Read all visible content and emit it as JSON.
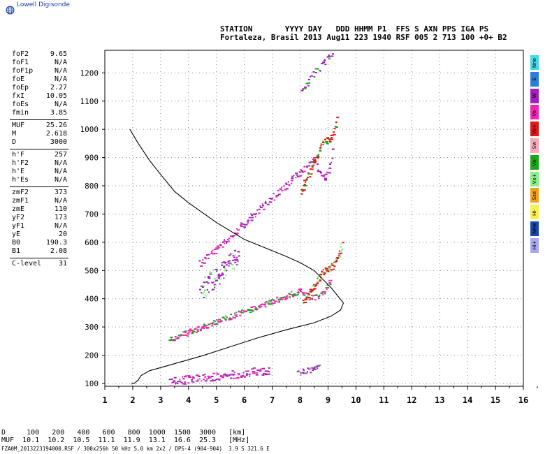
{
  "app": {
    "logo_text": "Lowell Digisonde",
    "globe_icon": "globe-icon"
  },
  "header": {
    "line1": "STATION       YYYY DAY   DDD HHMM P1  FFS S AXN PPS IGA PS",
    "line2": "Fortaleza, Brasil 2013 Aug11 223 1940 RSF 005 2 713 100 +0+ B2"
  },
  "params": {
    "group1": [
      {
        "label": "foF2",
        "value": "9.65"
      },
      {
        "label": "foF1",
        "value": "N/A"
      },
      {
        "label": "foF1p",
        "value": "N/A"
      },
      {
        "label": "foE",
        "value": "N/A"
      },
      {
        "label": "foEp",
        "value": "2.27"
      },
      {
        "label": "fxI",
        "value": "10.05"
      },
      {
        "label": "foEs",
        "value": "N/A"
      },
      {
        "label": "fmin",
        "value": "3.85"
      }
    ],
    "group2": [
      {
        "label": "MUF",
        "value": "25.26"
      },
      {
        "label": "M",
        "value": "2.618"
      },
      {
        "label": "D",
        "value": "3000"
      }
    ],
    "group3": [
      {
        "label": "h'F",
        "value": "257"
      },
      {
        "label": "h'F2",
        "value": "N/A"
      },
      {
        "label": "h'E",
        "value": "N/A"
      },
      {
        "label": "h'Es",
        "value": "N/A"
      }
    ],
    "group4": [
      {
        "label": "zmF2",
        "value": "373"
      },
      {
        "label": "zmF1",
        "value": "N/A"
      },
      {
        "label": "zmE",
        "value": "110"
      },
      {
        "label": "yF2",
        "value": "173"
      },
      {
        "label": "yF1",
        "value": "N/A"
      },
      {
        "label": "yE",
        "value": "20"
      },
      {
        "label": "B0",
        "value": "190.3"
      },
      {
        "label": "B1",
        "value": "2.08"
      }
    ],
    "group5": [
      {
        "label": "C-level",
        "value": "31"
      }
    ]
  },
  "legend": [
    {
      "label": "Nne",
      "color": "#44d8e8"
    },
    {
      "label": "E",
      "color": "#2a7fd8"
    },
    {
      "label": "W",
      "color": "#a020b8"
    },
    {
      "label": "Vo-",
      "color": "#f028b0"
    },
    {
      "label": "Vo+",
      "color": "#e01818"
    },
    {
      "label": "Sw",
      "color": "#f4a8b8"
    },
    {
      "label": "Vx-",
      "color": "#18a818"
    },
    {
      "label": "Vx+",
      "color": "#88f088"
    },
    {
      "label": "Sse",
      "color": "#f0a020"
    },
    {
      "label": "Hi-",
      "color": "#f8f050"
    },
    {
      "label": "Nnw",
      "color": "#1848a8"
    },
    {
      "label": "Hi+",
      "color": "#a8a8f0"
    }
  ],
  "muf_table": {
    "line1": "D     100   200   400   600   800  1000  1500  3000   [km]",
    "line2": "MUF  10.1  10.2  10.5  11.1  11.9  13.1  16.6  25.3   [MHz]"
  },
  "footer": "FZA0M_2013223194000.RSF / 300x256h 50 kHz 5.0 km 2x2 / DPS-4 (904-904)  3.9 S 321.6 E",
  "chart_data": {
    "type": "scatter",
    "title": "",
    "xlabel": "",
    "ylabel": "",
    "xlim": [
      1,
      16
    ],
    "ylim": [
      90,
      1280
    ],
    "x_ticks": [
      1,
      2,
      3,
      4,
      5,
      6,
      7,
      8,
      9,
      10,
      11,
      12,
      13,
      14,
      15,
      16
    ],
    "y_ticks": [
      100,
      200,
      300,
      400,
      500,
      600,
      700,
      800,
      900,
      1000,
      1100,
      1200
    ],
    "grid": true,
    "profile": {
      "name": "",
      "color": "#000000",
      "points": [
        [
          1.9,
          1000
        ],
        [
          2.2,
          950
        ],
        [
          2.6,
          890
        ],
        [
          3.0,
          840
        ],
        [
          3.5,
          780
        ],
        [
          4.0,
          740
        ],
        [
          4.5,
          705
        ],
        [
          5.0,
          670
        ],
        [
          5.5,
          640
        ],
        [
          6.0,
          610
        ],
        [
          6.5,
          590
        ],
        [
          7.0,
          570
        ],
        [
          7.5,
          550
        ],
        [
          8.0,
          528
        ],
        [
          8.5,
          500
        ],
        [
          8.8,
          470
        ],
        [
          9.1,
          440
        ],
        [
          9.35,
          410
        ],
        [
          9.55,
          385
        ],
        [
          9.45,
          360
        ],
        [
          9.1,
          338
        ],
        [
          8.5,
          315
        ],
        [
          7.5,
          290
        ],
        [
          6.5,
          262
        ],
        [
          5.5,
          230
        ],
        [
          4.5,
          198
        ],
        [
          3.5,
          170
        ],
        [
          2.6,
          145
        ],
        [
          2.3,
          128
        ],
        [
          2.2,
          112
        ],
        [
          2.05,
          100
        ],
        [
          1.95,
          98
        ]
      ]
    },
    "traces": [
      {
        "name": "",
        "color": "#f028b0",
        "alt": "#18a818",
        "x0": 3.3,
        "x1": 9.1,
        "h0": 258,
        "h1": 470,
        "bend": 8.0,
        "spread": 8,
        "n": 220
      },
      {
        "name": "",
        "color": "#e01818",
        "alt": "#88f088",
        "x0": 8.1,
        "x1": 9.5,
        "h0": 390,
        "h1": 600,
        "bend": 8.9,
        "spread": 8,
        "n": 90
      },
      {
        "name": "",
        "color": "#a020b8",
        "alt": "#f028b0",
        "x0": 4.4,
        "x1": 9.2,
        "h0": 525,
        "h1": 960,
        "bend": 8.5,
        "spread": 10,
        "n": 150
      },
      {
        "name": "",
        "color": "#e01818",
        "alt": "#18a818",
        "x0": 8.0,
        "x1": 9.3,
        "h0": 780,
        "h1": 1060,
        "bend": 8.9,
        "spread": 8,
        "n": 70
      },
      {
        "name": "",
        "color": "#a020b8",
        "alt": "#f028b0",
        "x0": 3.3,
        "x1": 6.9,
        "h0": 108,
        "h1": 150,
        "bend": 7.0,
        "spread": 12,
        "n": 120
      },
      {
        "name": "",
        "color": "#a020b8",
        "alt": "#88f088",
        "x0": 4.4,
        "x1": 5.8,
        "h0": 430,
        "h1": 560,
        "bend": 7.0,
        "spread": 30,
        "n": 90
      },
      {
        "name": "",
        "color": "#a020b8",
        "alt": "#18a818",
        "x0": 8.0,
        "x1": 9.2,
        "h0": 1140,
        "h1": 1280,
        "bend": 9.5,
        "spread": 10,
        "n": 30
      },
      {
        "name": "",
        "color": "#a020b8",
        "alt": "#888888",
        "x0": 7.9,
        "x1": 8.7,
        "h0": 140,
        "h1": 160,
        "bend": 9.0,
        "spread": 8,
        "n": 25
      }
    ]
  }
}
